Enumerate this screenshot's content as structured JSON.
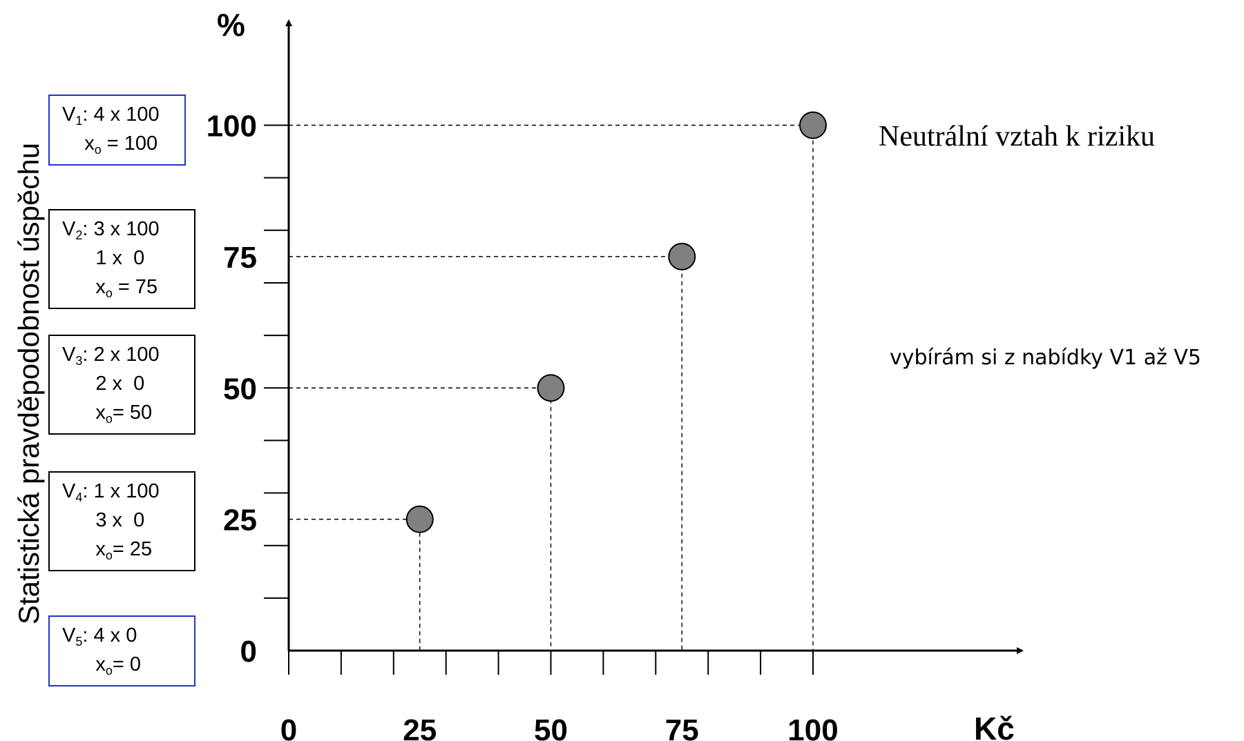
{
  "chart_data": {
    "type": "scatter",
    "ylabel": "Statistická pravděpodobnost úspěchu",
    "y_unit": "%",
    "x_unit": "Kč",
    "xlim": [
      0,
      100
    ],
    "ylim": [
      0,
      100
    ],
    "x_ticks": [
      0,
      25,
      50,
      75,
      100
    ],
    "y_ticks": [
      0,
      25,
      50,
      75,
      100
    ],
    "x_minor_step": 10,
    "y_minor_step": 10,
    "grid": false,
    "points": [
      {
        "x": 25,
        "y": 25
      },
      {
        "x": 50,
        "y": 50
      },
      {
        "x": 75,
        "y": 75
      },
      {
        "x": 100,
        "y": 100
      }
    ],
    "point_color": "#808080",
    "guide_lines": "dashed"
  },
  "variants": [
    {
      "name": "V",
      "sub": "1",
      "lines": [
        "4 x 100"
      ],
      "xo_sub": "o",
      "xo_text": " = 100",
      "border": "#2233cc"
    },
    {
      "name": "V",
      "sub": "2",
      "lines": [
        "3 x 100",
        "1 x  0"
      ],
      "xo_sub": "o",
      "xo_text": " = 75",
      "border": "#000000"
    },
    {
      "name": "V",
      "sub": "3",
      "lines": [
        "2 x 100",
        "2 x  0"
      ],
      "xo_sub": "o",
      "xo_text": "= 50",
      "border": "#000000"
    },
    {
      "name": "V",
      "sub": "4",
      "lines": [
        "1 x 100",
        "3 x  0"
      ],
      "xo_sub": "o",
      "xo_text": "= 25",
      "border": "#000000"
    },
    {
      "name": "V",
      "sub": "5",
      "lines": [
        "4 x 0"
      ],
      "xo_sub": "o",
      "xo_text": "= 0",
      "border": "#2233cc"
    }
  ],
  "annotations": {
    "title": "Neutrální vztah k riziku",
    "note": "vybírám si z nabídky V1 až V5"
  }
}
